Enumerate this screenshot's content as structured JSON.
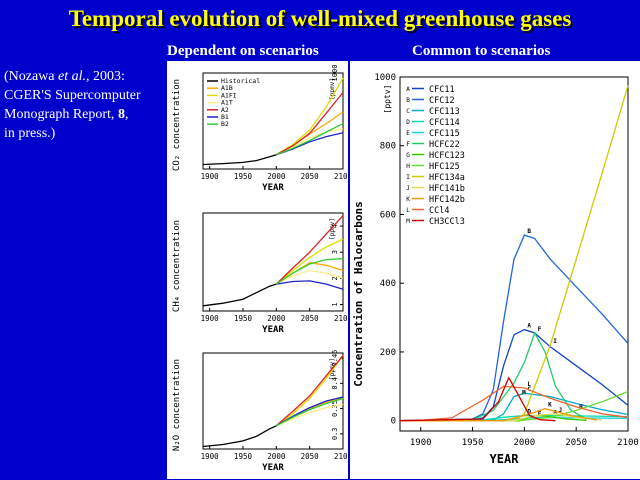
{
  "slide": {
    "title": "Temporal evolution of well-mixed greenhouse gases",
    "subtitle_left": "Dependent on scenarios",
    "subtitle_right": "Common to scenarios",
    "citation": {
      "authors": "(Nozawa ",
      "etal": "et al.",
      "year": ", 2003:",
      "line2": "CGER'S Supercomputer",
      "line3a": "Monograph Report, ",
      "volume": "8",
      "line3b": ",",
      "line4": "in press.)"
    }
  },
  "chart_data": [
    {
      "type": "line",
      "ylabel": "CO₂ concentration",
      "unit": "[ppmv]",
      "xlabel": "YEAR",
      "xlim": [
        1890,
        2100
      ],
      "xticks": [
        1900,
        1950,
        2000,
        2050,
        2100
      ],
      "yticks_shown": [
        1000
      ],
      "legend": [
        "Historical",
        "A1B",
        "A1FI",
        "A1T",
        "A2",
        "B1",
        "B2"
      ],
      "colors": {
        "Historical": "#000000",
        "A1B": "#ffaa00",
        "A1FI": "#dddd00",
        "A1T": "#ffee88",
        "A2": "#dd2222",
        "B1": "#2222cc",
        "B2": "#33cc33"
      },
      "series": [
        {
          "name": "Historical",
          "x": [
            1890,
            1920,
            1950,
            1970,
            1990,
            2000
          ],
          "y": [
            295,
            302,
            311,
            325,
            354,
            370
          ]
        },
        {
          "name": "A1B",
          "x": [
            2000,
            2025,
            2050,
            2075,
            2100
          ],
          "y": [
            370,
            440,
            530,
            610,
            700
          ]
        },
        {
          "name": "A1FI",
          "x": [
            2000,
            2025,
            2050,
            2075,
            2100
          ],
          "y": [
            370,
            450,
            560,
            740,
            960
          ]
        },
        {
          "name": "A1T",
          "x": [
            2000,
            2025,
            2050,
            2075,
            2100
          ],
          "y": [
            370,
            430,
            500,
            545,
            570
          ]
        },
        {
          "name": "A2",
          "x": [
            2000,
            2025,
            2050,
            2075,
            2100
          ],
          "y": [
            370,
            440,
            535,
            690,
            850
          ]
        },
        {
          "name": "B1",
          "x": [
            2000,
            2025,
            2050,
            2075,
            2100
          ],
          "y": [
            370,
            415,
            470,
            510,
            540
          ]
        },
        {
          "name": "B2",
          "x": [
            2000,
            2025,
            2050,
            2075,
            2100
          ],
          "y": [
            370,
            420,
            480,
            545,
            610
          ]
        }
      ]
    },
    {
      "type": "line",
      "ylabel": "CH₄ concentration",
      "unit": "[ppmv]",
      "xlabel": "YEAR",
      "xlim": [
        1890,
        2100
      ],
      "ylim": [
        0.75,
        4.5
      ],
      "xticks": [
        1900,
        1950,
        2000,
        2050,
        2100
      ],
      "yticks": [
        1,
        2,
        3,
        4
      ],
      "series": [
        {
          "name": "Historical",
          "x": [
            1890,
            1920,
            1950,
            1970,
            1990,
            2000
          ],
          "y": [
            0.95,
            1.05,
            1.2,
            1.45,
            1.7,
            1.78
          ]
        },
        {
          "name": "A1B",
          "x": [
            2000,
            2025,
            2050,
            2075,
            2100
          ],
          "y": [
            1.78,
            2.2,
            2.6,
            2.5,
            2.3
          ]
        },
        {
          "name": "A1FI",
          "x": [
            2000,
            2025,
            2050,
            2075,
            2100
          ],
          "y": [
            1.78,
            2.3,
            2.8,
            3.2,
            3.5
          ]
        },
        {
          "name": "A1T",
          "x": [
            2000,
            2025,
            2050,
            2075,
            2100
          ],
          "y": [
            1.78,
            2.1,
            2.3,
            2.2,
            2.0
          ]
        },
        {
          "name": "A2",
          "x": [
            2000,
            2025,
            2050,
            2075,
            2100
          ],
          "y": [
            1.78,
            2.4,
            3.0,
            3.7,
            4.4
          ]
        },
        {
          "name": "B1",
          "x": [
            2000,
            2025,
            2050,
            2075,
            2100
          ],
          "y": [
            1.78,
            1.88,
            1.9,
            1.78,
            1.58
          ]
        },
        {
          "name": "B2",
          "x": [
            2000,
            2025,
            2050,
            2075,
            2100
          ],
          "y": [
            1.78,
            2.2,
            2.55,
            2.72,
            2.75
          ]
        }
      ]
    },
    {
      "type": "line",
      "ylabel": "N₂O concentration",
      "unit": "[ppmv]",
      "xlabel": "YEAR",
      "xlim": [
        1890,
        2100
      ],
      "ylim": [
        0.27,
        0.46
      ],
      "xticks": [
        1900,
        1950,
        2000,
        2050,
        2100
      ],
      "yticks": [
        0.3,
        0.35,
        0.4,
        0.45
      ],
      "series": [
        {
          "name": "Historical",
          "x": [
            1890,
            1920,
            1950,
            1970,
            1990,
            2000
          ],
          "y": [
            0.275,
            0.279,
            0.286,
            0.295,
            0.31,
            0.316
          ]
        },
        {
          "name": "A1B",
          "x": [
            2000,
            2025,
            2050,
            2075,
            2100
          ],
          "y": [
            0.316,
            0.335,
            0.35,
            0.363,
            0.372
          ]
        },
        {
          "name": "A1FI",
          "x": [
            2000,
            2025,
            2050,
            2075,
            2100
          ],
          "y": [
            0.316,
            0.34,
            0.37,
            0.41,
            0.455
          ]
        },
        {
          "name": "A1T",
          "x": [
            2000,
            2025,
            2050,
            2075,
            2100
          ],
          "y": [
            0.316,
            0.33,
            0.342,
            0.352,
            0.358
          ]
        },
        {
          "name": "A2",
          "x": [
            2000,
            2025,
            2050,
            2075,
            2100
          ],
          "y": [
            0.316,
            0.345,
            0.375,
            0.415,
            0.455
          ]
        },
        {
          "name": "B1",
          "x": [
            2000,
            2025,
            2050,
            2075,
            2100
          ],
          "y": [
            0.316,
            0.335,
            0.352,
            0.365,
            0.373
          ]
        },
        {
          "name": "B2",
          "x": [
            2000,
            2025,
            2050,
            2075,
            2100
          ],
          "y": [
            0.316,
            0.333,
            0.348,
            0.36,
            0.37
          ]
        }
      ]
    },
    {
      "type": "line",
      "ylabel": "Concentration of Halocarbons",
      "unit": "[pptv]",
      "xlabel": "YEAR",
      "xlim": [
        1880,
        2100
      ],
      "ylim": [
        -30,
        1000
      ],
      "xticks": [
        1900,
        1950,
        2000,
        2050,
        2100
      ],
      "yticks": [
        0,
        200,
        400,
        600,
        800,
        1000
      ],
      "series": [
        {
          "name": "CFC11",
          "letter": "A",
          "color": "#1144cc",
          "x": [
            1880,
            1950,
            1960,
            1970,
            1980,
            1990,
            2000,
            2010,
            2025,
            2050,
            2075,
            2100
          ],
          "y": [
            0,
            2,
            8,
            40,
            160,
            250,
            265,
            255,
            215,
            160,
            105,
            45
          ]
        },
        {
          "name": "CFC12",
          "letter": "B",
          "color": "#2266dd",
          "x": [
            1880,
            1950,
            1960,
            1970,
            1980,
            1990,
            2000,
            2010,
            2025,
            2050,
            2075,
            2100
          ],
          "y": [
            0,
            5,
            20,
            90,
            290,
            470,
            540,
            530,
            470,
            390,
            310,
            225
          ]
        },
        {
          "name": "CFC113",
          "letter": "C",
          "color": "#00aacc",
          "x": [
            1880,
            1970,
            1980,
            1990,
            2000,
            2025,
            2050,
            2075,
            2100
          ],
          "y": [
            0,
            2,
            20,
            70,
            80,
            70,
            50,
            32,
            18
          ]
        },
        {
          "name": "CFC114",
          "letter": "D",
          "color": "#00ddaa",
          "x": [
            1880,
            1960,
            1980,
            2000,
            2050,
            2100
          ],
          "y": [
            0,
            2,
            10,
            15,
            14,
            12
          ]
        },
        {
          "name": "CFC115",
          "letter": "E",
          "color": "#22ccdd",
          "x": [
            1880,
            1970,
            1990,
            2010,
            2050,
            2100
          ],
          "y": [
            0,
            1,
            5,
            9,
            8,
            7
          ]
        },
        {
          "name": "HCFC22",
          "letter": "F",
          "color": "#22cc66",
          "x": [
            1880,
            1950,
            1970,
            1990,
            2000,
            2010,
            2020,
            2030,
            2045,
            2060
          ],
          "y": [
            0,
            2,
            30,
            110,
            170,
            255,
            200,
            100,
            30,
            5
          ]
        },
        {
          "name": "HCFC123",
          "letter": "G",
          "color": "#33cc00",
          "x": [
            1880,
            1995,
            2010,
            2025,
            2040,
            2060
          ],
          "y": [
            0,
            0,
            15,
            12,
            5,
            1
          ]
        },
        {
          "name": "HFC125",
          "letter": "H",
          "color": "#66dd33",
          "x": [
            1880,
            1995,
            2025,
            2050,
            2075,
            2100
          ],
          "y": [
            0,
            0,
            10,
            30,
            55,
            85
          ]
        },
        {
          "name": "HFC134a",
          "letter": "I",
          "color": "#cccc00",
          "x": [
            1880,
            1990,
            2000,
            2025,
            2050,
            2075,
            2100
          ],
          "y": [
            0,
            0,
            20,
            220,
            470,
            720,
            975
          ]
        },
        {
          "name": "HFC141b",
          "letter": "J",
          "color": "#dddd55",
          "x": [
            1880,
            1990,
            2010,
            2030,
            2050,
            2075
          ],
          "y": [
            0,
            0,
            15,
            20,
            10,
            2
          ]
        },
        {
          "name": "HFC142b",
          "letter": "K",
          "color": "#ee9900",
          "x": [
            1880,
            1980,
            2000,
            2020,
            2045,
            2070
          ],
          "y": [
            0,
            0,
            15,
            35,
            15,
            2
          ]
        },
        {
          "name": "CCl4",
          "letter": "L",
          "color": "#ee6633",
          "x": [
            1880,
            1900,
            1930,
            1960,
            1980,
            2000,
            2025,
            2050,
            2075,
            2100
          ],
          "y": [
            0,
            1,
            8,
            60,
            100,
            95,
            65,
            40,
            20,
            10
          ]
        },
        {
          "name": "CH3CCl3",
          "letter": "M",
          "color": "#cc0000",
          "x": [
            1880,
            1960,
            1975,
            1985,
            1995,
            2005,
            2015,
            2030
          ],
          "y": [
            0,
            5,
            55,
            125,
            70,
            15,
            3,
            0
          ]
        }
      ]
    }
  ]
}
